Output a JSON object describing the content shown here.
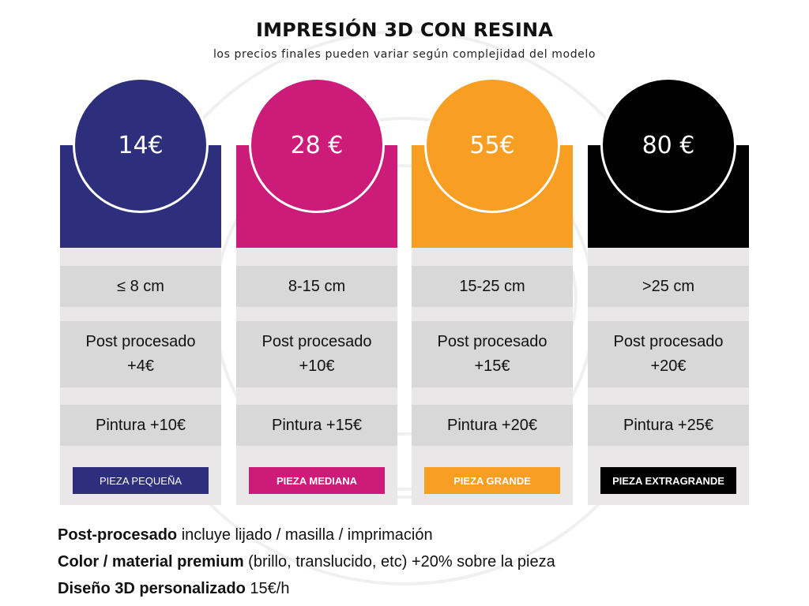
{
  "header": {
    "title": "IMPRESIÓN 3D CON RESINA",
    "subtitle": "los precios finales pueden variar según complejidad del modelo"
  },
  "cards": [
    {
      "price": "14€",
      "size": "≤ 8 cm",
      "post_line1": "Post procesado",
      "post_line2": "+4€",
      "paint": "Pintura +10€",
      "badge": "PIEZA PEQUEÑA",
      "color": "#2e2f7c",
      "badge_bold": false
    },
    {
      "price": "28 €",
      "size": "8-15 cm",
      "post_line1": "Post procesado",
      "post_line2": "+10€",
      "paint": "Pintura +15€",
      "badge": "PIEZA MEDIANA",
      "color": "#cc1b78",
      "badge_bold": true
    },
    {
      "price": "55€",
      "size": "15-25 cm",
      "post_line1": "Post procesado",
      "post_line2": "+15€",
      "paint": "Pintura +20€",
      "badge": "PIEZA GRANDE",
      "color": "#f89e22",
      "badge_bold": true
    },
    {
      "price": "80 €",
      "size": ">25 cm",
      "post_line1": "Post procesado",
      "post_line2": "+20€",
      "paint": "Pintura +25€",
      "badge": "PIEZA EXTRAGRANDE",
      "color": "#000000",
      "badge_bold": true
    }
  ],
  "notes": [
    {
      "bold": "Post-procesado",
      "text": " incluye lijado / masilla / imprimación"
    },
    {
      "bold": "Color / material premium",
      "text": " (brillo, translucido, etc) +20% sobre la pieza"
    },
    {
      "bold": "Diseño 3D personalizado",
      "text": " 15€/h"
    }
  ]
}
